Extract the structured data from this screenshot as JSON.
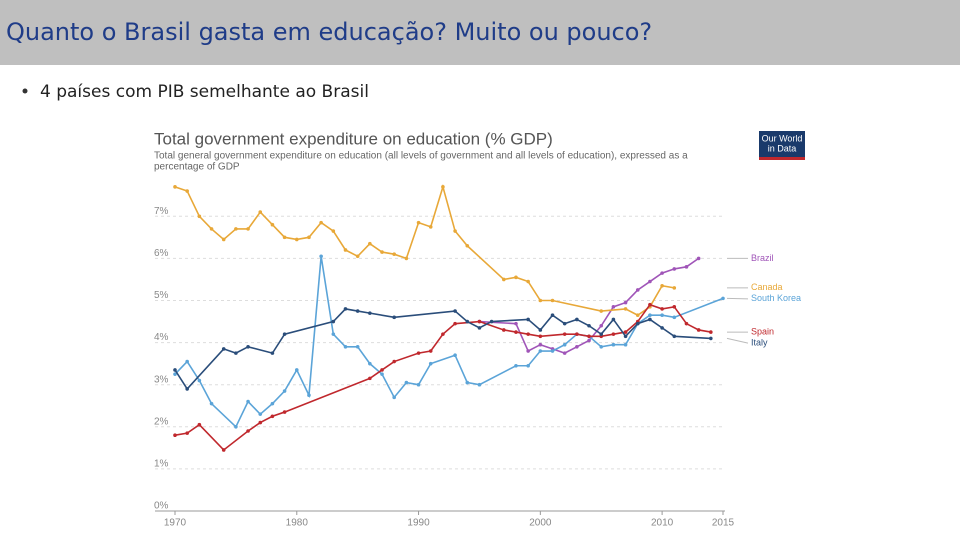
{
  "slide": {
    "title": "Quanto o Brasil gasta em educação? Muito ou pouco?",
    "bullet": "4 países com PIB semelhante ao Brasil"
  },
  "logo": [
    "Our World",
    "in Data"
  ],
  "chart_data": {
    "type": "line",
    "title": "Total government expenditure on education (% GDP)",
    "subtitle": [
      "Total general government expenditure on education (all levels of government and all levels of education), expressed as a",
      "percentage of GDP"
    ],
    "xlim": [
      1970,
      2015
    ],
    "xticks": [
      1970,
      1980,
      1990,
      2000,
      2010,
      2015
    ],
    "ylim": [
      0,
      7.5
    ],
    "yticks": [
      {
        "value": 0,
        "label": "0%"
      },
      {
        "value": 1,
        "label": "1%"
      },
      {
        "value": 2,
        "label": "2%"
      },
      {
        "value": 3,
        "label": "3%"
      },
      {
        "value": 4,
        "label": "4%"
      },
      {
        "value": 5,
        "label": "5%"
      },
      {
        "value": 6,
        "label": "6%"
      },
      {
        "value": 7,
        "label": "7%"
      }
    ],
    "grid": true,
    "series": [
      {
        "name": "Brazil",
        "color": "#a055b8",
        "x": [
          1995,
          1998,
          1999,
          2000,
          2001,
          2002,
          2003,
          2004,
          2005,
          2006,
          2007,
          2008,
          2009,
          2010,
          2011,
          2012,
          2013
        ],
        "values": [
          4.5,
          4.45,
          3.8,
          3.95,
          3.85,
          3.75,
          3.9,
          4.05,
          4.4,
          4.85,
          4.95,
          5.25,
          5.45,
          5.65,
          5.75,
          5.8,
          6.0
        ]
      },
      {
        "name": "Canada",
        "color": "#e8a838",
        "x": [
          1970,
          1971,
          1972,
          1973,
          1974,
          1975,
          1976,
          1977,
          1978,
          1979,
          1980,
          1981,
          1982,
          1983,
          1984,
          1985,
          1986,
          1987,
          1988,
          1989,
          1990,
          1991,
          1992,
          1993,
          1994,
          1997,
          1998,
          1999,
          2000,
          2001,
          2005,
          2007,
          2008,
          2009,
          2010,
          2011
        ],
        "values": [
          7.7,
          7.6,
          7.0,
          6.7,
          6.45,
          6.7,
          6.7,
          7.1,
          6.8,
          6.5,
          6.45,
          6.5,
          6.85,
          6.65,
          6.2,
          6.05,
          6.35,
          6.15,
          6.1,
          6.0,
          6.85,
          6.75,
          7.7,
          6.65,
          6.3,
          5.5,
          5.55,
          5.45,
          5.0,
          5.0,
          4.75,
          4.8,
          4.65,
          4.85,
          5.35,
          5.3
        ]
      },
      {
        "name": "South Korea",
        "color": "#5ba4d8",
        "x": [
          1970,
          1971,
          1972,
          1973,
          1975,
          1976,
          1977,
          1978,
          1979,
          1980,
          1981,
          1982,
          1983,
          1984,
          1985,
          1986,
          1987,
          1988,
          1989,
          1990,
          1991,
          1993,
          1994,
          1995,
          1998,
          1999,
          2000,
          2001,
          2002,
          2003,
          2004,
          2005,
          2006,
          2007,
          2008,
          2009,
          2010,
          2011,
          2015
        ],
        "values": [
          3.25,
          3.55,
          3.1,
          2.55,
          2.0,
          2.6,
          2.3,
          2.55,
          2.85,
          3.35,
          2.75,
          6.05,
          4.2,
          3.9,
          3.9,
          3.5,
          3.25,
          2.7,
          3.05,
          3.0,
          3.5,
          3.7,
          3.05,
          3.0,
          3.45,
          3.45,
          3.8,
          3.8,
          3.95,
          4.2,
          4.15,
          3.9,
          3.95,
          3.95,
          4.45,
          4.65,
          4.65,
          4.6,
          5.05
        ]
      },
      {
        "name": "Spain",
        "color": "#c0282d",
        "x": [
          1970,
          1971,
          1972,
          1974,
          1976,
          1977,
          1978,
          1979,
          1986,
          1987,
          1988,
          1990,
          1991,
          1992,
          1993,
          1995,
          1997,
          1998,
          1999,
          2000,
          2002,
          2003,
          2004,
          2005,
          2006,
          2007,
          2008,
          2009,
          2010,
          2011,
          2012,
          2013,
          2014
        ],
        "values": [
          1.8,
          1.85,
          2.05,
          1.45,
          1.9,
          2.1,
          2.25,
          2.35,
          3.15,
          3.35,
          3.55,
          3.75,
          3.8,
          4.2,
          4.45,
          4.5,
          4.3,
          4.25,
          4.2,
          4.15,
          4.2,
          4.2,
          4.15,
          4.15,
          4.2,
          4.25,
          4.5,
          4.9,
          4.8,
          4.85,
          4.45,
          4.3,
          4.25
        ]
      },
      {
        "name": "Italy",
        "color": "#2a4d7a",
        "x": [
          1970,
          1971,
          1974,
          1975,
          1976,
          1978,
          1979,
          1983,
          1984,
          1985,
          1986,
          1988,
          1993,
          1994,
          1995,
          1996,
          1999,
          2000,
          2001,
          2002,
          2003,
          2004,
          2005,
          2006,
          2007,
          2008,
          2009,
          2010,
          2011,
          2014
        ],
        "values": [
          3.35,
          2.9,
          3.85,
          3.75,
          3.9,
          3.75,
          4.2,
          4.5,
          4.8,
          4.75,
          4.7,
          4.6,
          4.75,
          4.5,
          4.35,
          4.5,
          4.55,
          4.3,
          4.65,
          4.45,
          4.55,
          4.4,
          4.2,
          4.55,
          4.15,
          4.45,
          4.55,
          4.35,
          4.15,
          4.1
        ]
      }
    ]
  }
}
